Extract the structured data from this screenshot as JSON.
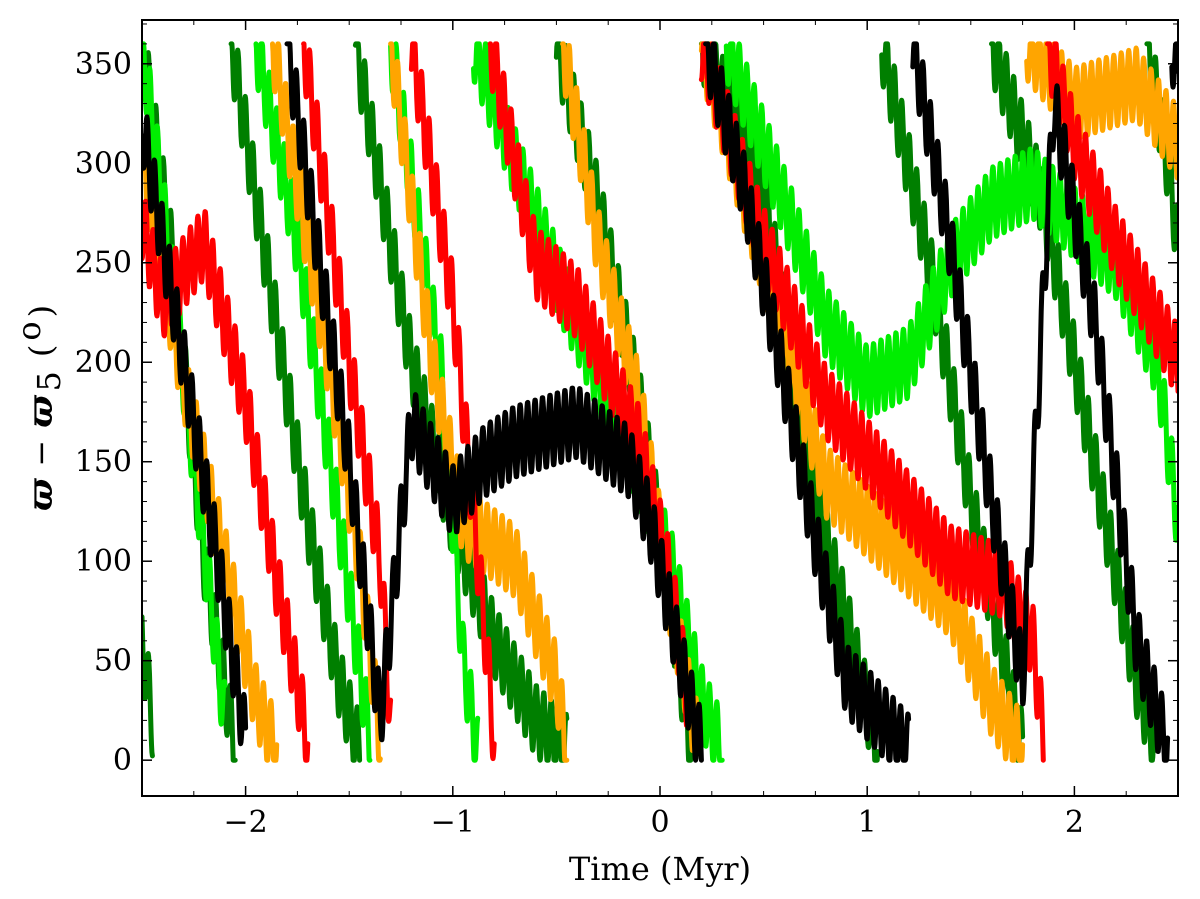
{
  "chart_data": {
    "type": "line",
    "xlabel": "Time (Myr)",
    "ylabel": {
      "text": "ϖ − ϖ₅ (°)",
      "symbol": "ϖ",
      "minus": "−",
      "subscript": "5",
      "unit_open": "(",
      "unit_sup": "o",
      "unit_close": ")"
    },
    "xlim": [
      -2.5,
      2.5
    ],
    "ylim": [
      -18,
      372
    ],
    "xticks": [
      -2,
      -1,
      0,
      1,
      2
    ],
    "xtick_labels": [
      "−2",
      "−1",
      "0",
      "1",
      "2"
    ],
    "yticks": [
      0,
      50,
      100,
      150,
      200,
      250,
      300,
      350
    ],
    "ytick_labels": [
      "0",
      "50",
      "100",
      "150",
      "200",
      "250",
      "300",
      "350"
    ],
    "angle_wrap": [
      0,
      360
    ],
    "oscillation": {
      "amplitude_deg": 18,
      "period_myr": 0.036
    },
    "grid": false,
    "legend": "none",
    "series": [
      {
        "color": "#000000",
        "description_points": [
          [
            -2.5,
            320
          ],
          [
            -2.3,
            200
          ],
          [
            -2.15,
            110
          ],
          [
            -2.0,
            10
          ],
          [
            -1.8,
            360
          ],
          [
            -1.5,
            150
          ],
          [
            -1.35,
            20
          ],
          [
            -1.2,
            170
          ],
          [
            -1.0,
            130
          ],
          [
            -0.85,
            150
          ],
          [
            -0.7,
            160
          ],
          [
            -0.4,
            170
          ],
          [
            -0.15,
            150
          ],
          [
            -0.05,
            120
          ],
          [
            0.1,
            50
          ],
          [
            0.2,
            5
          ],
          [
            0.22,
            360
          ],
          [
            0.4,
            290
          ],
          [
            0.6,
            190
          ],
          [
            0.75,
            110
          ],
          [
            0.9,
            40
          ],
          [
            1.2,
            5
          ],
          [
            1.22,
            360
          ],
          [
            1.4,
            260
          ],
          [
            1.6,
            130
          ],
          [
            1.75,
            40
          ],
          [
            1.9,
            330
          ],
          [
            2.1,
            220
          ],
          [
            2.3,
            60
          ],
          [
            2.45,
            5
          ],
          [
            2.47,
            360
          ],
          [
            2.5,
            340
          ]
        ]
      },
      {
        "color": "#ff0000",
        "description_points": [
          [
            -2.5,
            270
          ],
          [
            -2.4,
            230
          ],
          [
            -2.2,
            260
          ],
          [
            -2.0,
            180
          ],
          [
            -1.85,
            90
          ],
          [
            -1.7,
            10
          ],
          [
            -1.72,
            360
          ],
          [
            -1.5,
            200
          ],
          [
            -1.35,
            100
          ],
          [
            -1.3,
            20
          ],
          [
            -1.2,
            360
          ],
          [
            -1.0,
            230
          ],
          [
            -0.85,
            70
          ],
          [
            -0.8,
            10
          ],
          [
            -0.82,
            360
          ],
          [
            -0.6,
            250
          ],
          [
            -0.4,
            230
          ],
          [
            -0.1,
            160
          ],
          [
            0.05,
            90
          ],
          [
            0.15,
            20
          ],
          [
            0.2,
            360
          ],
          [
            0.5,
            260
          ],
          [
            0.8,
            180
          ],
          [
            1.1,
            140
          ],
          [
            1.4,
            100
          ],
          [
            1.65,
            90
          ],
          [
            1.8,
            60
          ],
          [
            1.85,
            10
          ],
          [
            1.87,
            360
          ],
          [
            2.0,
            310
          ],
          [
            2.2,
            260
          ],
          [
            2.4,
            220
          ],
          [
            2.5,
            200
          ]
        ]
      },
      {
        "color": "#ffa500",
        "description_points": [
          [
            -2.5,
            300
          ],
          [
            -2.3,
            190
          ],
          [
            -2.1,
            100
          ],
          [
            -1.95,
            30
          ],
          [
            -1.85,
            5
          ],
          [
            -1.87,
            360
          ],
          [
            -1.6,
            200
          ],
          [
            -1.45,
            100
          ],
          [
            -1.35,
            10
          ],
          [
            -1.3,
            360
          ],
          [
            -1.1,
            200
          ],
          [
            -0.95,
            120
          ],
          [
            -0.7,
            100
          ],
          [
            -0.5,
            40
          ],
          [
            -0.45,
            5
          ],
          [
            -0.47,
            360
          ],
          [
            -0.3,
            260
          ],
          [
            -0.1,
            180
          ],
          [
            0.05,
            80
          ],
          [
            0.18,
            10
          ],
          [
            0.2,
            360
          ],
          [
            0.5,
            250
          ],
          [
            0.8,
            140
          ],
          [
            1.1,
            110
          ],
          [
            1.4,
            80
          ],
          [
            1.6,
            30
          ],
          [
            1.75,
            5
          ],
          [
            1.77,
            360
          ],
          [
            2.0,
            330
          ],
          [
            2.3,
            340
          ],
          [
            2.5,
            310
          ]
        ]
      },
      {
        "color": "#00ee00",
        "description_points": [
          [
            -2.5,
            360
          ],
          [
            -2.4,
            280
          ],
          [
            -2.25,
            150
          ],
          [
            -2.1,
            20
          ],
          [
            -1.95,
            360
          ],
          [
            -1.75,
            260
          ],
          [
            -1.55,
            120
          ],
          [
            -1.4,
            10
          ],
          [
            -1.3,
            360
          ],
          [
            -1.05,
            190
          ],
          [
            -0.95,
            50
          ],
          [
            -0.88,
            5
          ],
          [
            -0.9,
            360
          ],
          [
            -0.7,
            300
          ],
          [
            -0.45,
            230
          ],
          [
            -0.2,
            170
          ],
          [
            0.05,
            100
          ],
          [
            0.2,
            30
          ],
          [
            0.3,
            5
          ],
          [
            0.32,
            360
          ],
          [
            0.6,
            280
          ],
          [
            0.8,
            220
          ],
          [
            1.0,
            190
          ],
          [
            1.2,
            200
          ],
          [
            1.4,
            250
          ],
          [
            1.6,
            280
          ],
          [
            1.8,
            290
          ],
          [
            2.0,
            270
          ],
          [
            2.2,
            250
          ],
          [
            2.4,
            200
          ],
          [
            2.5,
            120
          ]
        ]
      },
      {
        "color": "#007f00",
        "description_points": [
          [
            -2.5,
            60
          ],
          [
            -2.45,
            20
          ],
          [
            -2.5,
            360
          ],
          [
            -2.35,
            250
          ],
          [
            -2.2,
            100
          ],
          [
            -2.05,
            5
          ],
          [
            -2.07,
            360
          ],
          [
            -1.9,
            250
          ],
          [
            -1.7,
            120
          ],
          [
            -1.55,
            40
          ],
          [
            -1.45,
            5
          ],
          [
            -1.47,
            360
          ],
          [
            -1.2,
            200
          ],
          [
            -1.0,
            120
          ],
          [
            -0.8,
            60
          ],
          [
            -0.6,
            20
          ],
          [
            -0.45,
            5
          ],
          [
            -0.5,
            360
          ],
          [
            -0.3,
            280
          ],
          [
            -0.1,
            180
          ],
          [
            0.05,
            80
          ],
          [
            0.15,
            5
          ],
          [
            0.2,
            360
          ],
          [
            0.5,
            290
          ],
          [
            0.7,
            150
          ],
          [
            0.9,
            70
          ],
          [
            1.05,
            5
          ],
          [
            1.07,
            360
          ],
          [
            1.3,
            250
          ],
          [
            1.5,
            130
          ],
          [
            1.7,
            30
          ],
          [
            1.75,
            5
          ],
          [
            1.6,
            360
          ],
          [
            1.85,
            280
          ],
          [
            2.0,
            200
          ],
          [
            2.15,
            120
          ],
          [
            2.3,
            40
          ],
          [
            2.4,
            5
          ],
          [
            2.35,
            360
          ],
          [
            2.45,
            300
          ],
          [
            2.5,
            260
          ]
        ]
      }
    ]
  }
}
